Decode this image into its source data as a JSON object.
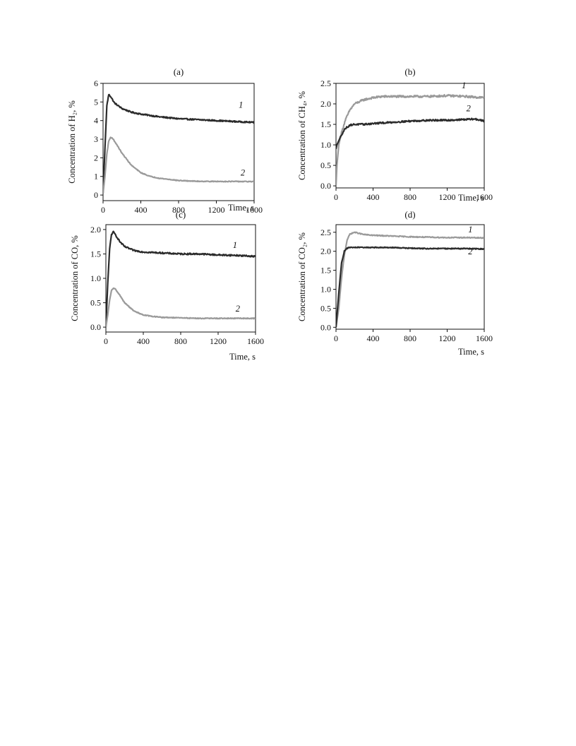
{
  "colors": {
    "series_1_dark": "#2b2b2b",
    "series_2_light": "#9a9a9a",
    "axis": "#111111"
  },
  "chart_data": [
    {
      "panel": "(a)",
      "type": "line",
      "xlabel": "Time, s",
      "ylabel": "Concentration of H₂, %",
      "xlim": [
        0,
        1600
      ],
      "ylim": [
        -0.3,
        6
      ],
      "xticks": [
        0,
        400,
        800,
        1200,
        1600
      ],
      "yticks": [
        0,
        1,
        2,
        3,
        4,
        5,
        6
      ],
      "ytick_decimals": 0,
      "grid": false,
      "noise": [
        0.035,
        0.02
      ],
      "series": [
        {
          "label": "1",
          "color": "#2b2b2b",
          "x": [
            0,
            20,
            40,
            60,
            80,
            120,
            200,
            300,
            400,
            600,
            800,
            1000,
            1200,
            1400,
            1600
          ],
          "y": [
            0.1,
            2.5,
            4.8,
            5.4,
            5.3,
            4.95,
            4.65,
            4.45,
            4.35,
            4.2,
            4.1,
            4.05,
            4.0,
            3.95,
            3.9
          ]
        },
        {
          "label": "2",
          "color": "#9a9a9a",
          "x": [
            0,
            20,
            40,
            60,
            80,
            100,
            140,
            200,
            300,
            400,
            500,
            600,
            800,
            1000,
            1200,
            1400,
            1600
          ],
          "y": [
            0.1,
            1.0,
            2.2,
            2.9,
            3.1,
            3.05,
            2.75,
            2.25,
            1.6,
            1.2,
            1.0,
            0.9,
            0.78,
            0.74,
            0.73,
            0.73,
            0.72
          ]
        }
      ],
      "curve_labels": [
        {
          "text": "1",
          "x": 1460,
          "y": 4.7
        },
        {
          "text": "2",
          "x": 1480,
          "y": 1.05
        }
      ]
    },
    {
      "panel": "(b)",
      "type": "line",
      "xlabel": "Time, s",
      "ylabel": "Concentration of CH₄, %",
      "xlim": [
        0,
        1600
      ],
      "ylim": [
        -0.05,
        2.5
      ],
      "xticks": [
        0,
        400,
        800,
        1200,
        1600
      ],
      "yticks": [
        0.0,
        0.5,
        1.0,
        1.5,
        2.0,
        2.5
      ],
      "ytick_decimals": 1,
      "grid": false,
      "noise": [
        0.025,
        0.02
      ],
      "series": [
        {
          "label": "1",
          "color": "#9a9a9a",
          "x": [
            0,
            10,
            30,
            60,
            100,
            150,
            200,
            300,
            400,
            500,
            600,
            800,
            1000,
            1200,
            1400,
            1600
          ],
          "y": [
            0.0,
            0.5,
            1.0,
            1.3,
            1.6,
            1.85,
            2.0,
            2.1,
            2.15,
            2.18,
            2.18,
            2.18,
            2.18,
            2.2,
            2.18,
            2.15
          ]
        },
        {
          "label": "2",
          "color": "#2b2b2b",
          "x": [
            0,
            10,
            30,
            60,
            100,
            150,
            200,
            300,
            400,
            600,
            800,
            1000,
            1200,
            1400,
            1500,
            1600
          ],
          "y": [
            0.9,
            1.0,
            1.1,
            1.25,
            1.4,
            1.48,
            1.5,
            1.5,
            1.52,
            1.55,
            1.58,
            1.6,
            1.6,
            1.62,
            1.63,
            1.58
          ]
        }
      ],
      "curve_labels": [
        {
          "text": "1",
          "x": 1380,
          "y": 2.38
        },
        {
          "text": "2",
          "x": 1430,
          "y": 1.82
        }
      ]
    },
    {
      "panel": "(c)",
      "type": "line",
      "xlabel": "Time, s",
      "ylabel": "Concentration of CO, %",
      "xlim": [
        0,
        1600
      ],
      "ylim": [
        -0.1,
        2.1
      ],
      "xticks": [
        0,
        400,
        800,
        1200,
        1600
      ],
      "yticks": [
        0.0,
        0.5,
        1.0,
        1.5,
        2.0
      ],
      "ytick_decimals": 1,
      "grid": false,
      "noise": [
        0.015,
        0.008
      ],
      "series": [
        {
          "label": "1",
          "color": "#2b2b2b",
          "x": [
            0,
            20,
            40,
            60,
            80,
            100,
            150,
            200,
            300,
            400,
            600,
            800,
            1000,
            1200,
            1400,
            1600
          ],
          "y": [
            0.0,
            0.9,
            1.6,
            1.9,
            1.95,
            1.9,
            1.75,
            1.65,
            1.57,
            1.54,
            1.52,
            1.5,
            1.5,
            1.48,
            1.47,
            1.45
          ]
        },
        {
          "label": "2",
          "color": "#9a9a9a",
          "x": [
            0,
            20,
            40,
            60,
            80,
            100,
            140,
            200,
            300,
            400,
            500,
            600,
            800,
            1000,
            1200,
            1400,
            1600
          ],
          "y": [
            0.0,
            0.25,
            0.55,
            0.75,
            0.8,
            0.78,
            0.68,
            0.5,
            0.33,
            0.25,
            0.22,
            0.2,
            0.19,
            0.18,
            0.18,
            0.18,
            0.18
          ]
        }
      ],
      "curve_labels": [
        {
          "text": "1",
          "x": 1380,
          "y": 1.62
        },
        {
          "text": "2",
          "x": 1410,
          "y": 0.32
        }
      ]
    },
    {
      "panel": "(d)",
      "type": "line",
      "xlabel": "Time, s",
      "ylabel": "Concentration of CO₂, %",
      "xlim": [
        0,
        1600
      ],
      "ylim": [
        -0.05,
        2.7
      ],
      "xticks": [
        0,
        400,
        800,
        1200,
        1600
      ],
      "yticks": [
        0.0,
        0.5,
        1.0,
        1.5,
        2.0,
        2.5
      ],
      "ytick_decimals": 1,
      "grid": false,
      "noise": [
        0.012,
        0.012
      ],
      "series": [
        {
          "label": "1",
          "color": "#9a9a9a",
          "x": [
            0,
            30,
            60,
            90,
            120,
            150,
            200,
            250,
            300,
            400,
            600,
            800,
            1000,
            1200,
            1400,
            1600
          ],
          "y": [
            0.0,
            0.5,
            1.3,
            1.9,
            2.3,
            2.45,
            2.5,
            2.47,
            2.44,
            2.42,
            2.4,
            2.38,
            2.37,
            2.36,
            2.36,
            2.35
          ]
        },
        {
          "label": "2",
          "color": "#2b2b2b",
          "x": [
            0,
            30,
            60,
            90,
            120,
            150,
            200,
            300,
            400,
            600,
            800,
            1000,
            1200,
            1400,
            1600
          ],
          "y": [
            0.0,
            0.9,
            1.7,
            2.0,
            2.08,
            2.1,
            2.1,
            2.1,
            2.1,
            2.1,
            2.08,
            2.07,
            2.07,
            2.07,
            2.06
          ]
        }
      ],
      "curve_labels": [
        {
          "text": "1",
          "x": 1450,
          "y": 2.5
        },
        {
          "text": "2",
          "x": 1450,
          "y": 1.92
        }
      ]
    }
  ]
}
